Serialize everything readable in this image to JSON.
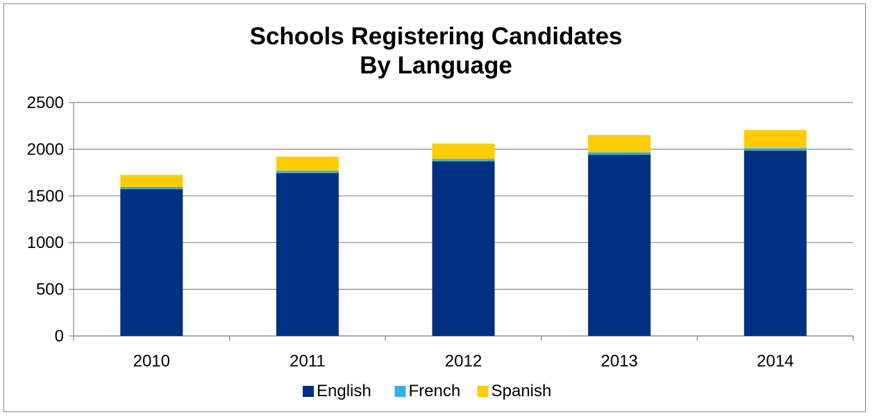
{
  "chart_data": {
    "type": "bar",
    "stacked": true,
    "title": [
      "Schools Registering Candidates",
      "By Language"
    ],
    "xlabel": "",
    "ylabel": "",
    "categories": [
      "2010",
      "2011",
      "2012",
      "2013",
      "2014"
    ],
    "series": [
      {
        "name": "English",
        "color": "#003082",
        "values": [
          1572,
          1745,
          1870,
          1940,
          1985
        ]
      },
      {
        "name": "French",
        "color": "#33B0E5",
        "values": [
          23,
          25,
          25,
          27,
          27
        ]
      },
      {
        "name": "Spanish",
        "color": "#FFCC00",
        "values": [
          130,
          150,
          165,
          185,
          193
        ]
      }
    ],
    "ylim": [
      0,
      2500
    ],
    "yticks": [
      "0",
      "500",
      "1000",
      "1500",
      "2000",
      "2500"
    ],
    "grid": true,
    "legend": "bottom"
  }
}
